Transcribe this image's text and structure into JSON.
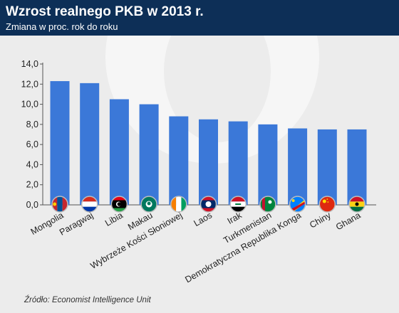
{
  "header": {
    "title": "Wzrost realnego PKB w 2013 r.",
    "subtitle": "Zmiana w proc. rok do roku"
  },
  "source": "Źródło: Economist Intelligence Unit",
  "colors": {
    "bar": "#3b78d8",
    "header_bg": "#0d2f57",
    "background": "#ececec"
  },
  "chart_data": {
    "type": "bar",
    "title": "Wzrost realnego PKB w 2013 r.",
    "subtitle": "Zmiana w proc. rok do roku",
    "categories": [
      "Mongolia",
      "Paragwaj",
      "Libia",
      "Makau",
      "Wybrzeże Kości Słoniowej",
      "Laos",
      "Irak",
      "Turkmenistan",
      "Demokratyczna Republika Konga",
      "Chiny",
      "Ghana"
    ],
    "values": [
      12.3,
      12.1,
      10.5,
      10.0,
      8.8,
      8.5,
      8.3,
      8.0,
      7.6,
      7.5,
      7.5
    ],
    "y_ticks": [
      "0,0",
      "2,0",
      "4,0",
      "6,0",
      "8,0",
      "10,0",
      "12,0",
      "14,0"
    ],
    "ylim": [
      0,
      14
    ],
    "grid": false,
    "flag_icons": [
      "mongolia-flag-icon",
      "paraguay-flag-icon",
      "libya-flag-icon",
      "macau-flag-icon",
      "ivory-coast-flag-icon",
      "laos-flag-icon",
      "iraq-flag-icon",
      "turkmenistan-flag-icon",
      "dr-congo-flag-icon",
      "china-flag-icon",
      "ghana-flag-icon"
    ]
  }
}
